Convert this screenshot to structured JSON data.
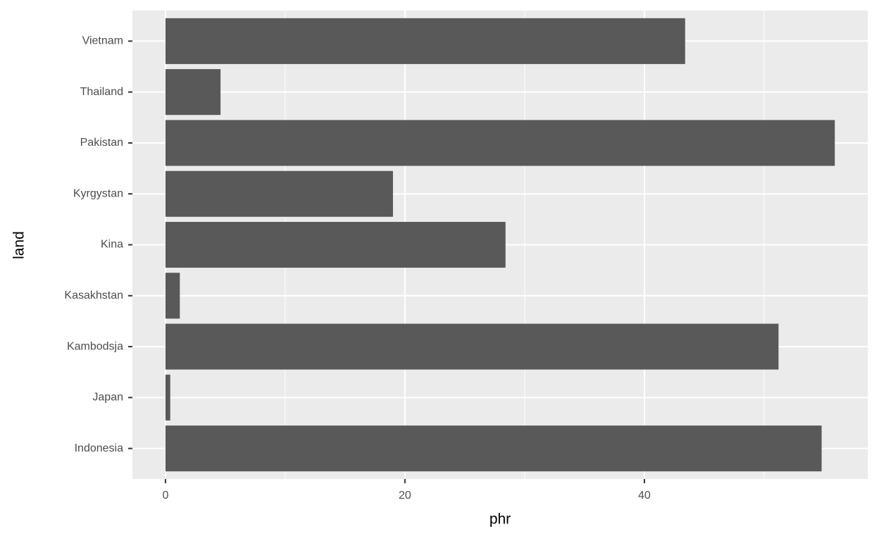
{
  "chart_data": {
    "type": "bar",
    "orientation": "horizontal",
    "x_label": "phr",
    "y_label": "land",
    "categories": [
      "Indonesia",
      "Japan",
      "Kambodsja",
      "Kasakhstan",
      "Kina",
      "Kyrgystan",
      "Pakistan",
      "Thailand",
      "Vietnam"
    ],
    "values": [
      54.8,
      0.4,
      51.2,
      1.2,
      28.4,
      19.0,
      55.9,
      4.6,
      43.4
    ],
    "color": "#595959",
    "xlim": [
      -2.76,
      58.65
    ],
    "xticks": [
      0,
      20,
      40
    ],
    "minor_xticks": [
      10,
      30,
      50
    ],
    "grid": true,
    "panel_color": "#ebebeb"
  }
}
